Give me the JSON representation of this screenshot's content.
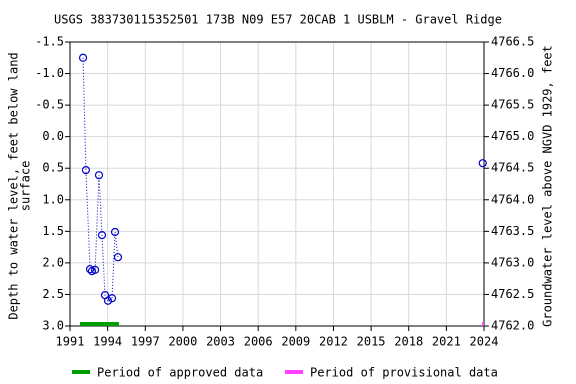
{
  "chart_data": {
    "type": "line",
    "title": "USGS 383730115352501 173B N09 E57 20CAB 1    USBLM - Gravel Ridge",
    "y_label": [
      "Depth to water level, feet below land",
      "surface"
    ],
    "y2_label": "Groundwater level above NGVD 1929, feet",
    "x": [
      1992.04,
      1992.27,
      1992.6,
      1992.75,
      1993.0,
      1993.31,
      1993.55,
      1993.79,
      1994.03,
      1994.35,
      1994.59,
      1994.82,
      2023.9
    ],
    "series": [
      {
        "color": "#0000cc",
        "values": [
          -1.25,
          0.53,
          2.1,
          2.13,
          2.11,
          0.61,
          1.56,
          2.51,
          2.6,
          2.56,
          1.51,
          1.91,
          0.42
        ]
      }
    ],
    "xlim": [
      1991,
      2024
    ],
    "xticks": [
      1991,
      1994,
      1997,
      2000,
      2003,
      2006,
      2009,
      2012,
      2015,
      2018,
      2021,
      2024
    ],
    "ylim": [
      -1.5,
      3.0
    ],
    "y_inverted": true,
    "yticks": [
      -1.5,
      {
        "value": -1.0,
        "label": "-1.0"
      },
      -0.5,
      {
        "value": 0.0,
        "label": "0.0"
      },
      0.5,
      {
        "value": 1.0,
        "label": "1.0"
      },
      1.5,
      {
        "value": 2.0,
        "label": "2.0"
      },
      2.5,
      {
        "value": 3.0,
        "label": "3.0"
      }
    ],
    "y2lim": [
      4766.5,
      4762.0
    ],
    "y2ticks": [
      4766.5,
      {
        "value": 4766.0,
        "label": "4766.0"
      },
      4765.5,
      {
        "value": 4765.0,
        "label": "4765.0"
      },
      4764.5,
      {
        "value": 4764.0,
        "label": "4764.0"
      },
      4763.5,
      {
        "value": 4763.0,
        "label": "4763.0"
      },
      4762.5,
      {
        "value": 4762.0,
        "label": "4762.0"
      }
    ],
    "grid": true,
    "periods": [
      {
        "name": "Period of approved data",
        "color": "#00a000",
        "range": [
          1991.8,
          1994.9
        ]
      },
      {
        "name": "Period of provisional data",
        "color": "#ff40ff",
        "range": [
          2023.85,
          2024
        ]
      }
    ]
  }
}
